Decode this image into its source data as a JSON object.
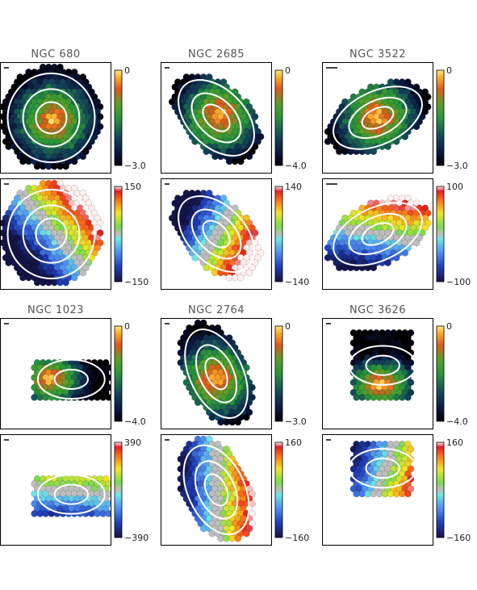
{
  "chart_data": [
    {
      "type": "heatmap",
      "title": "NGC 680",
      "quantity": "flux",
      "colorbar": {
        "max": "0",
        "min": "−3.0",
        "map": "heat"
      },
      "hex_map": {
        "shape": "ellipse",
        "cx": 0.46,
        "cy": 0.5,
        "rx": 0.46,
        "ry": 0.47,
        "rot": 0,
        "peak": [
          0.48,
          0.52
        ]
      }
    },
    {
      "type": "heatmap",
      "title": "NGC 2685",
      "quantity": "flux",
      "colorbar": {
        "max": "0",
        "min": "−4.0",
        "map": "heat"
      },
      "hex_map": {
        "shape": "ellipse",
        "cx": 0.5,
        "cy": 0.5,
        "rx": 0.48,
        "ry": 0.3,
        "rot": 45,
        "peak": [
          0.53,
          0.48
        ]
      }
    },
    {
      "type": "heatmap",
      "title": "NGC 3522",
      "quantity": "flux",
      "colorbar": {
        "max": "0",
        "min": "−3.0",
        "map": "heat"
      },
      "hex_map": {
        "shape": "ellipse",
        "cx": 0.5,
        "cy": 0.5,
        "rx": 0.5,
        "ry": 0.28,
        "rot": -25,
        "peak": [
          0.5,
          0.5
        ]
      }
    },
    {
      "type": "heatmap",
      "title": "",
      "quantity": "velocity",
      "colorbar": {
        "max": "150",
        "min": "−150",
        "map": "velocity"
      },
      "hex_map": {
        "shape": "ellipse",
        "cx": 0.46,
        "cy": 0.5,
        "rx": 0.46,
        "ry": 0.47,
        "rot": 0,
        "pa": -40
      }
    },
    {
      "type": "heatmap",
      "title": "",
      "quantity": "velocity",
      "colorbar": {
        "max": "140",
        "min": "−140",
        "map": "velocity"
      },
      "hex_map": {
        "shape": "ellipse",
        "cx": 0.5,
        "cy": 0.5,
        "rx": 0.48,
        "ry": 0.3,
        "rot": 45,
        "pa": 30
      }
    },
    {
      "type": "heatmap",
      "title": "",
      "quantity": "velocity",
      "colorbar": {
        "max": "100",
        "min": "−100",
        "map": "velocity"
      },
      "hex_map": {
        "shape": "ellipse",
        "cx": 0.5,
        "cy": 0.5,
        "rx": 0.5,
        "ry": 0.28,
        "rot": -25,
        "pa": -80
      }
    },
    {
      "type": "heatmap",
      "title": "NGC 1023",
      "quantity": "flux",
      "colorbar": {
        "max": "0",
        "min": "−4.0",
        "map": "heat"
      },
      "hex_map": {
        "shape": "rect",
        "x0": 0.3,
        "x1": 0.98,
        "y0": 0.38,
        "y1": 0.72,
        "peak": [
          0.45,
          0.55
        ]
      }
    },
    {
      "type": "heatmap",
      "title": "NGC 2764",
      "quantity": "flux",
      "colorbar": {
        "max": "0",
        "min": "−3.0",
        "map": "heat"
      },
      "hex_map": {
        "shape": "ellipse",
        "cx": 0.5,
        "cy": 0.5,
        "rx": 0.5,
        "ry": 0.28,
        "rot": 65,
        "peak": [
          0.5,
          0.55
        ]
      }
    },
    {
      "type": "heatmap",
      "title": "NGC 3626",
      "quantity": "flux",
      "colorbar": {
        "max": "0",
        "min": "−4.0",
        "map": "heat"
      },
      "hex_map": {
        "shape": "rect",
        "x0": 0.27,
        "x1": 0.82,
        "y0": 0.1,
        "y1": 0.75,
        "peak": [
          0.53,
          0.6
        ]
      }
    },
    {
      "type": "heatmap",
      "title": "",
      "quantity": "velocity",
      "colorbar": {
        "max": "390",
        "min": "−390",
        "map": "velocity"
      },
      "hex_map": {
        "shape": "rect",
        "x0": 0.3,
        "x1": 0.98,
        "y0": 0.36,
        "y1": 0.72,
        "pa": -85
      }
    },
    {
      "type": "heatmap",
      "title": "",
      "quantity": "velocity",
      "colorbar": {
        "max": "160",
        "min": "−160",
        "map": "velocity"
      },
      "hex_map": {
        "shape": "ellipse",
        "cx": 0.5,
        "cy": 0.5,
        "rx": 0.5,
        "ry": 0.3,
        "rot": 65,
        "pa": 0
      }
    },
    {
      "type": "heatmap",
      "title": "",
      "quantity": "velocity",
      "colorbar": {
        "max": "160",
        "min": "−160",
        "map": "velocity"
      },
      "hex_map": {
        "shape": "rect",
        "x0": 0.27,
        "x1": 0.82,
        "y0": 0.05,
        "y1": 0.56,
        "pa": 20
      }
    }
  ]
}
